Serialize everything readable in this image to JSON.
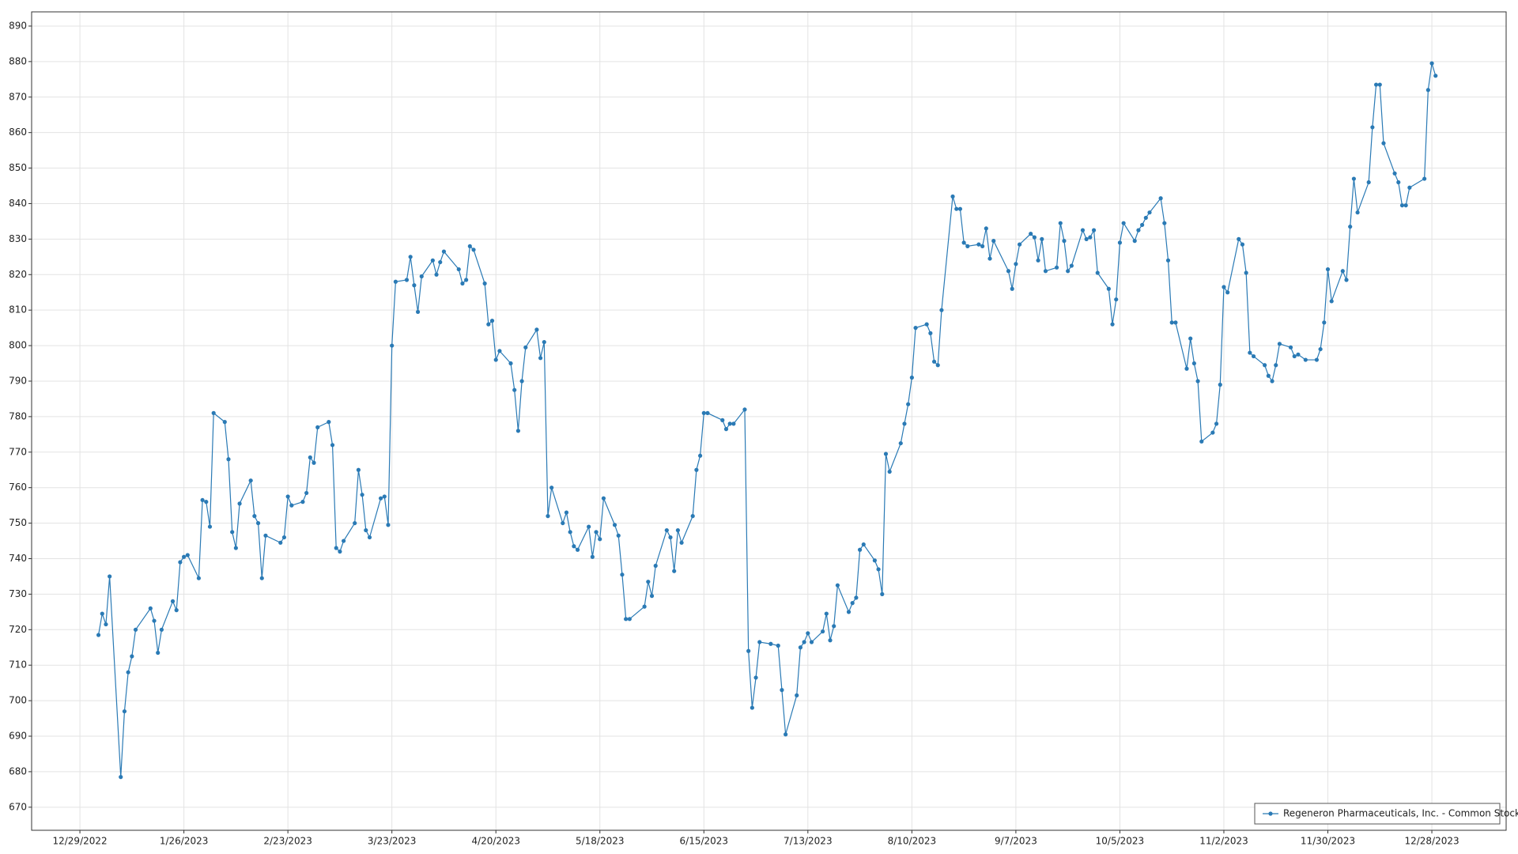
{
  "chart_data": {
    "type": "line",
    "x": [
      "2023-01-03",
      "2023-01-04",
      "2023-01-05",
      "2023-01-06",
      "2023-01-09",
      "2023-01-10",
      "2023-01-11",
      "2023-01-12",
      "2023-01-13",
      "2023-01-17",
      "2023-01-18",
      "2023-01-19",
      "2023-01-20",
      "2023-01-23",
      "2023-01-24",
      "2023-01-25",
      "2023-01-26",
      "2023-01-27",
      "2023-01-30",
      "2023-01-31",
      "2023-02-01",
      "2023-02-02",
      "2023-02-03",
      "2023-02-06",
      "2023-02-07",
      "2023-02-08",
      "2023-02-09",
      "2023-02-10",
      "2023-02-13",
      "2023-02-14",
      "2023-02-15",
      "2023-02-16",
      "2023-02-17",
      "2023-02-21",
      "2023-02-22",
      "2023-02-23",
      "2023-02-24",
      "2023-02-27",
      "2023-02-28",
      "2023-03-01",
      "2023-03-02",
      "2023-03-03",
      "2023-03-06",
      "2023-03-07",
      "2023-03-08",
      "2023-03-09",
      "2023-03-10",
      "2023-03-13",
      "2023-03-14",
      "2023-03-15",
      "2023-03-16",
      "2023-03-17",
      "2023-03-20",
      "2023-03-21",
      "2023-03-22",
      "2023-03-23",
      "2023-03-24",
      "2023-03-27",
      "2023-03-28",
      "2023-03-29",
      "2023-03-30",
      "2023-03-31",
      "2023-04-03",
      "2023-04-04",
      "2023-04-05",
      "2023-04-06",
      "2023-04-10",
      "2023-04-11",
      "2023-04-12",
      "2023-04-13",
      "2023-04-14",
      "2023-04-17",
      "2023-04-18",
      "2023-04-19",
      "2023-04-20",
      "2023-04-21",
      "2023-04-24",
      "2023-04-25",
      "2023-04-26",
      "2023-04-27",
      "2023-04-28",
      "2023-05-01",
      "2023-05-02",
      "2023-05-03",
      "2023-05-04",
      "2023-05-05",
      "2023-05-08",
      "2023-05-09",
      "2023-05-10",
      "2023-05-11",
      "2023-05-12",
      "2023-05-15",
      "2023-05-16",
      "2023-05-17",
      "2023-05-18",
      "2023-05-19",
      "2023-05-22",
      "2023-05-23",
      "2023-05-24",
      "2023-05-25",
      "2023-05-26",
      "2023-05-30",
      "2023-05-31",
      "2023-06-01",
      "2023-06-02",
      "2023-06-05",
      "2023-06-06",
      "2023-06-07",
      "2023-06-08",
      "2023-06-09",
      "2023-06-12",
      "2023-06-13",
      "2023-06-14",
      "2023-06-15",
      "2023-06-16",
      "2023-06-20",
      "2023-06-21",
      "2023-06-22",
      "2023-06-23",
      "2023-06-26",
      "2023-06-27",
      "2023-06-28",
      "2023-06-29",
      "2023-06-30",
      "2023-07-03",
      "2023-07-05",
      "2023-07-06",
      "2023-07-07",
      "2023-07-10",
      "2023-07-11",
      "2023-07-12",
      "2023-07-13",
      "2023-07-14",
      "2023-07-17",
      "2023-07-18",
      "2023-07-19",
      "2023-07-20",
      "2023-07-21",
      "2023-07-24",
      "2023-07-25",
      "2023-07-26",
      "2023-07-27",
      "2023-07-28",
      "2023-07-31",
      "2023-08-01",
      "2023-08-02",
      "2023-08-03",
      "2023-08-04",
      "2023-08-07",
      "2023-08-08",
      "2023-08-09",
      "2023-08-10",
      "2023-08-11",
      "2023-08-14",
      "2023-08-15",
      "2023-08-16",
      "2023-08-17",
      "2023-08-18",
      "2023-08-21",
      "2023-08-22",
      "2023-08-23",
      "2023-08-24",
      "2023-08-25",
      "2023-08-28",
      "2023-08-29",
      "2023-08-30",
      "2023-08-31",
      "2023-09-01",
      "2023-09-05",
      "2023-09-06",
      "2023-09-07",
      "2023-09-08",
      "2023-09-11",
      "2023-09-12",
      "2023-09-13",
      "2023-09-14",
      "2023-09-15",
      "2023-09-18",
      "2023-09-19",
      "2023-09-20",
      "2023-09-21",
      "2023-09-22",
      "2023-09-25",
      "2023-09-26",
      "2023-09-27",
      "2023-09-28",
      "2023-09-29",
      "2023-10-02",
      "2023-10-03",
      "2023-10-04",
      "2023-10-05",
      "2023-10-06",
      "2023-10-09",
      "2023-10-10",
      "2023-10-11",
      "2023-10-12",
      "2023-10-13",
      "2023-10-16",
      "2023-10-17",
      "2023-10-18",
      "2023-10-19",
      "2023-10-20",
      "2023-10-23",
      "2023-10-24",
      "2023-10-25",
      "2023-10-26",
      "2023-10-27",
      "2023-10-30",
      "2023-10-31",
      "2023-11-01",
      "2023-11-02",
      "2023-11-03",
      "2023-11-06",
      "2023-11-07",
      "2023-11-08",
      "2023-11-09",
      "2023-11-10",
      "2023-11-13",
      "2023-11-14",
      "2023-11-15",
      "2023-11-16",
      "2023-11-17",
      "2023-11-20",
      "2023-11-21",
      "2023-11-22",
      "2023-11-24",
      "2023-11-27",
      "2023-11-28",
      "2023-11-29",
      "2023-11-30",
      "2023-12-01",
      "2023-12-04",
      "2023-12-05",
      "2023-12-06",
      "2023-12-07",
      "2023-12-08",
      "2023-12-11",
      "2023-12-12",
      "2023-12-13",
      "2023-12-14",
      "2023-12-15",
      "2023-12-18",
      "2023-12-19",
      "2023-12-20",
      "2023-12-21",
      "2023-12-22",
      "2023-12-26",
      "2023-12-27",
      "2023-12-28",
      "2023-12-29"
    ],
    "series": [
      {
        "name": "Regeneron Pharmaceuticals, Inc. - Common Stock",
        "color": "#2a7ab5",
        "values": [
          718.5,
          724.5,
          721.5,
          735,
          678.5,
          697,
          708,
          712.5,
          720,
          726,
          722.5,
          713.5,
          720,
          728,
          725.5,
          739,
          740.5,
          741,
          734.5,
          756.5,
          756,
          749,
          781,
          778.5,
          768,
          747.5,
          743,
          755.5,
          762,
          752,
          750,
          734.5,
          746.5,
          744.5,
          746,
          757.5,
          755,
          756,
          758.5,
          768.5,
          767,
          777,
          778.5,
          772,
          743,
          742,
          745,
          750,
          765,
          758,
          748,
          746,
          757,
          757.5,
          749.5,
          800,
          818,
          818.5,
          825,
          817,
          809.5,
          819.5,
          824,
          820,
          823.5,
          826.5,
          821.5,
          817.5,
          818.5,
          828,
          827,
          817.5,
          806,
          807,
          796,
          798.5,
          795,
          787.5,
          776,
          790,
          799.5,
          804.5,
          796.5,
          801,
          752,
          760,
          750,
          753,
          747.5,
          743.5,
          742.5,
          749,
          740.5,
          747.5,
          745.5,
          757,
          749.5,
          746.5,
          735.5,
          723,
          723,
          726.5,
          733.5,
          729.5,
          738,
          748,
          746,
          736.5,
          748,
          744.5,
          752,
          765,
          769,
          781,
          781,
          779,
          776.5,
          778,
          778,
          782,
          714,
          698,
          706.5,
          716.5,
          716,
          715.5,
          703,
          690.5,
          701.5,
          715,
          716.5,
          719,
          716.5,
          719.5,
          724.5,
          717,
          721,
          732.5,
          725,
          727.5,
          729,
          742.5,
          744,
          739.5,
          737,
          730,
          769.5,
          764.5,
          772.5,
          778,
          783.5,
          791,
          805,
          806,
          803.5,
          795.5,
          794.5,
          810,
          842,
          838.5,
          838.5,
          829,
          828,
          828.5,
          828,
          833,
          824.5,
          829.5,
          821,
          816,
          823,
          828.5,
          831.5,
          830.5,
          824,
          830,
          821,
          822,
          834.5,
          829.5,
          821,
          822.5,
          832.5,
          830,
          830.5,
          832.5,
          820.5,
          816,
          806,
          813,
          829,
          834.5,
          829.5,
          832.5,
          834,
          836,
          837.5,
          841.5,
          834.5,
          824,
          806.5,
          806.5,
          793.5,
          802,
          795,
          790,
          773,
          775.5,
          778,
          789,
          816.5,
          815,
          830,
          828.5,
          820.5,
          798,
          797,
          794.5,
          791.5,
          790,
          794.5,
          800.5,
          799.5,
          797,
          797.5,
          796,
          796,
          799,
          806.5,
          821.5,
          812.5,
          821,
          818.5,
          833.5,
          847,
          837.5,
          846,
          861.5,
          873.5,
          873.5,
          857,
          848.5,
          846,
          839.5,
          839.5,
          844.5,
          847,
          872,
          879.5,
          876
        ]
      }
    ],
    "xlim": [
      "2022-12-16",
      "2024-01-17"
    ],
    "xticks": [
      {
        "value": "2022-12-29",
        "label": "12/29/2022"
      },
      {
        "value": "2023-01-26",
        "label": "1/26/2023"
      },
      {
        "value": "2023-02-23",
        "label": "2/23/2023"
      },
      {
        "value": "2023-03-23",
        "label": "3/23/2023"
      },
      {
        "value": "2023-04-20",
        "label": "4/20/2023"
      },
      {
        "value": "2023-05-18",
        "label": "5/18/2023"
      },
      {
        "value": "2023-06-15",
        "label": "6/15/2023"
      },
      {
        "value": "2023-07-13",
        "label": "7/13/2023"
      },
      {
        "value": "2023-08-10",
        "label": "8/10/2023"
      },
      {
        "value": "2023-09-07",
        "label": "9/7/2023"
      },
      {
        "value": "2023-10-05",
        "label": "10/5/2023"
      },
      {
        "value": "2023-11-02",
        "label": "11/2/2023"
      },
      {
        "value": "2023-11-30",
        "label": "11/30/2023"
      },
      {
        "value": "2023-12-28",
        "label": "12/28/2023"
      }
    ],
    "ylim": [
      663.5,
      894
    ],
    "yticks": [
      670,
      680,
      690,
      700,
      710,
      720,
      730,
      740,
      750,
      760,
      770,
      780,
      790,
      800,
      810,
      820,
      830,
      840,
      850,
      860,
      870,
      880,
      890
    ],
    "grid": true,
    "legend": "lower right"
  }
}
